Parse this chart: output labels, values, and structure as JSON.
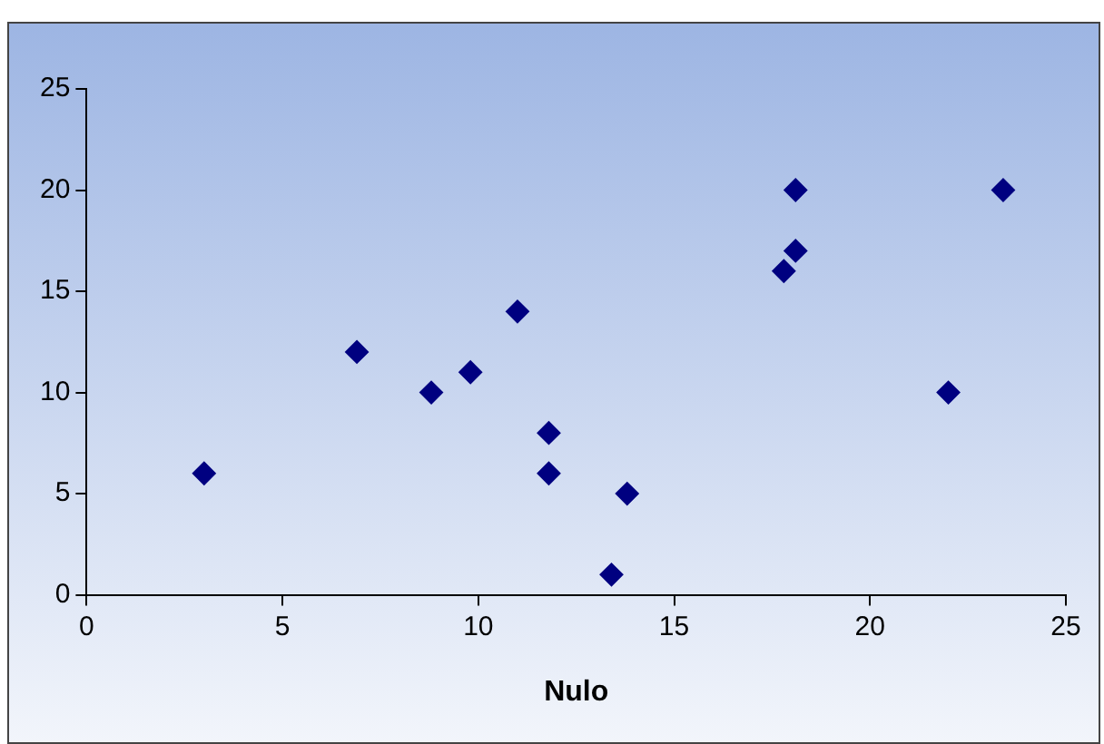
{
  "chart_data": {
    "type": "scatter",
    "xlabel": "Nulo",
    "x": [
      3,
      6.9,
      8.8,
      9.8,
      11,
      11.8,
      11.8,
      13.8,
      13.4,
      17.8,
      18.1,
      18.1,
      22,
      23.4
    ],
    "values": [
      6,
      12,
      10,
      11,
      14,
      8,
      6,
      5,
      1,
      16,
      17,
      20,
      10,
      20
    ],
    "color": "#000080",
    "marker": "diamond",
    "xlim": [
      0,
      25
    ],
    "xticks": [
      0,
      5,
      10,
      15,
      20,
      25
    ],
    "ylim": [
      0,
      25
    ],
    "yticks": [
      0,
      5,
      10,
      15,
      20,
      25
    ],
    "grid": false,
    "legend": false
  }
}
